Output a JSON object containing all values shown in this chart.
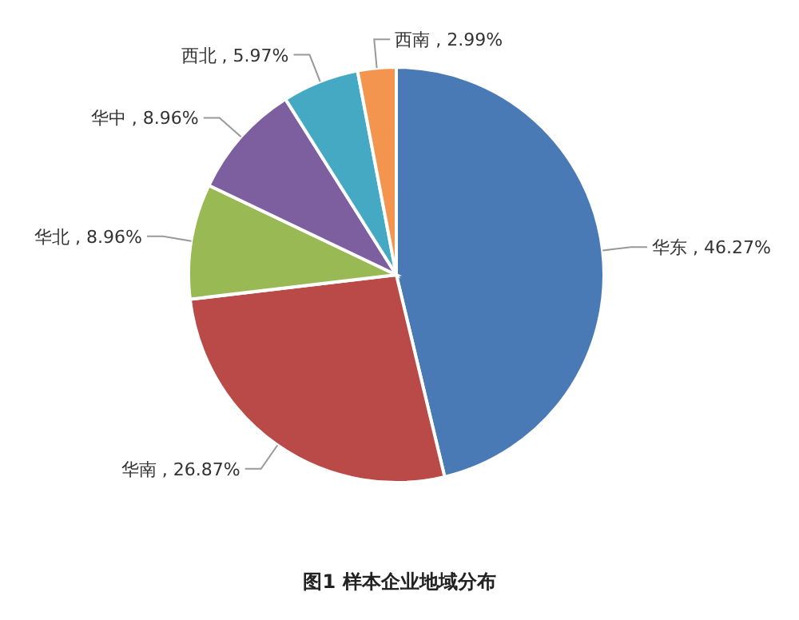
{
  "chart_data": {
    "type": "pie",
    "title": "图1 样本企业地域分布",
    "categories": [
      "华东",
      "华南",
      "华北",
      "华中",
      "西北",
      "西南"
    ],
    "values": [
      46.27,
      26.87,
      8.96,
      8.96,
      5.97,
      2.99
    ],
    "value_labels": [
      "46.27%",
      "26.87%",
      "8.96%",
      "8.96%",
      "5.97%",
      "2.99%"
    ],
    "colors": [
      "#4a7ab5",
      "#b94a48",
      "#98b954",
      "#7d5fa0",
      "#46a9c4",
      "#f3954f"
    ]
  }
}
